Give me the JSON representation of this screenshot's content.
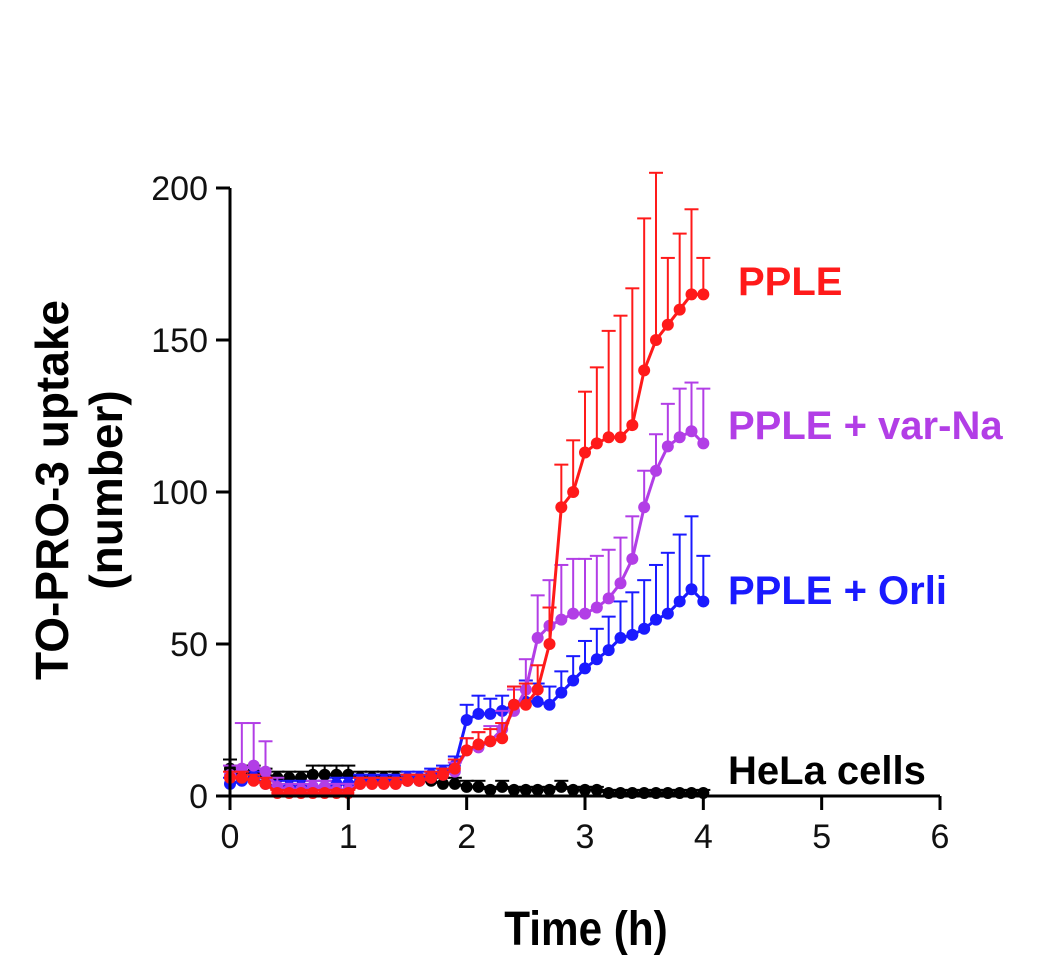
{
  "chart_data": {
    "type": "line",
    "title": "",
    "xlabel": "Time (h)",
    "ylabel_line1": "TO-PRO-3 uptake",
    "ylabel_line2": "(number)",
    "xlim": [
      0,
      6
    ],
    "ylim": [
      0,
      200
    ],
    "xticks": [
      0,
      1,
      2,
      3,
      4,
      5,
      6
    ],
    "yticks": [
      0,
      50,
      100,
      150,
      200
    ],
    "grid": false,
    "series": [
      {
        "name": "HeLa cells",
        "color": "#000000",
        "x": [
          0,
          0.1,
          0.2,
          0.3,
          0.4,
          0.5,
          0.6,
          0.7,
          0.8,
          0.9,
          1.0,
          1.1,
          1.2,
          1.3,
          1.4,
          1.5,
          1.6,
          1.7,
          1.8,
          1.9,
          2.0,
          2.1,
          2.2,
          2.3,
          2.4,
          2.5,
          2.6,
          2.7,
          2.8,
          2.9,
          3.0,
          3.1,
          3.2,
          3.3,
          3.4,
          3.5,
          3.6,
          3.7,
          3.8,
          3.9,
          4.0
        ],
        "y": [
          9,
          8,
          8,
          7,
          6,
          6,
          6,
          7,
          7,
          7,
          7,
          6,
          6,
          6,
          6,
          5,
          5,
          5,
          4,
          4,
          3,
          3,
          2,
          3,
          2,
          2,
          2,
          2,
          3,
          2,
          2,
          2,
          1,
          1,
          1,
          1,
          1,
          1,
          1,
          1,
          1
        ],
        "err": [
          3,
          2,
          2,
          2,
          2,
          2,
          2,
          3,
          3,
          3,
          3,
          2,
          2,
          2,
          2,
          2,
          2,
          2,
          2,
          2,
          2,
          2,
          1,
          2,
          1,
          1,
          1,
          1,
          2,
          1,
          1,
          1,
          1,
          1,
          1,
          1,
          1,
          1,
          1,
          1,
          1
        ]
      },
      {
        "name": "PPLE + Orli",
        "color": "#1a1aff",
        "x": [
          0,
          0.1,
          0.2,
          0.3,
          0.4,
          0.5,
          0.6,
          0.7,
          0.8,
          0.9,
          1.0,
          1.1,
          1.2,
          1.3,
          1.4,
          1.5,
          1.6,
          1.7,
          1.8,
          1.9,
          2.0,
          2.1,
          2.2,
          2.3,
          2.4,
          2.5,
          2.6,
          2.7,
          2.8,
          2.9,
          3.0,
          3.1,
          3.2,
          3.3,
          3.4,
          3.5,
          3.6,
          3.7,
          3.8,
          3.9,
          4.0
        ],
        "y": [
          4,
          5,
          6,
          4,
          3,
          3,
          3,
          3,
          3,
          4,
          4,
          5,
          5,
          5,
          5,
          6,
          6,
          7,
          8,
          10,
          25,
          27,
          27,
          28,
          30,
          31,
          31,
          30,
          34,
          38,
          42,
          45,
          48,
          52,
          53,
          55,
          58,
          60,
          64,
          68,
          64
        ],
        "err": [
          2,
          2,
          2,
          2,
          2,
          2,
          2,
          2,
          2,
          2,
          2,
          2,
          2,
          2,
          2,
          2,
          2,
          2,
          2,
          3,
          5,
          6,
          5,
          5,
          6,
          7,
          6,
          6,
          7,
          8,
          9,
          10,
          11,
          12,
          14,
          16,
          18,
          20,
          22,
          24,
          15
        ]
      },
      {
        "name": "PPLE + var-Na",
        "color": "#b23ee6",
        "x": [
          0,
          0.1,
          0.2,
          0.3,
          0.4,
          0.5,
          0.6,
          0.7,
          0.8,
          0.9,
          1.0,
          1.1,
          1.2,
          1.3,
          1.4,
          1.5,
          1.6,
          1.7,
          1.8,
          1.9,
          2.0,
          2.1,
          2.2,
          2.3,
          2.4,
          2.5,
          2.6,
          2.7,
          2.8,
          2.9,
          3.0,
          3.1,
          3.2,
          3.3,
          3.4,
          3.5,
          3.6,
          3.7,
          3.8,
          3.9,
          4.0
        ],
        "y": [
          7,
          9,
          10,
          8,
          3,
          2,
          2,
          3,
          3,
          2,
          2,
          4,
          4,
          4,
          4,
          5,
          5,
          6,
          7,
          8,
          15,
          16,
          18,
          22,
          28,
          35,
          52,
          56,
          58,
          60,
          60,
          62,
          65,
          70,
          78,
          95,
          107,
          115,
          118,
          120,
          116
        ],
        "err": [
          3,
          15,
          14,
          10,
          3,
          2,
          2,
          2,
          2,
          2,
          2,
          2,
          2,
          2,
          2,
          2,
          2,
          2,
          2,
          3,
          4,
          5,
          5,
          6,
          7,
          10,
          14,
          15,
          18,
          18,
          18,
          17,
          16,
          15,
          14,
          12,
          12,
          14,
          16,
          16,
          18
        ]
      },
      {
        "name": "PPLE",
        "color": "#ff1a1a",
        "x": [
          0,
          0.1,
          0.2,
          0.3,
          0.4,
          0.5,
          0.6,
          0.7,
          0.8,
          0.9,
          1.0,
          1.1,
          1.2,
          1.3,
          1.4,
          1.5,
          1.6,
          1.7,
          1.8,
          1.9,
          2.0,
          2.1,
          2.2,
          2.3,
          2.4,
          2.5,
          2.6,
          2.7,
          2.8,
          2.9,
          3.0,
          3.1,
          3.2,
          3.3,
          3.4,
          3.5,
          3.6,
          3.7,
          3.8,
          3.9,
          4.0
        ],
        "y": [
          6,
          6,
          5,
          4,
          1,
          1,
          1,
          1,
          1,
          1,
          1,
          4,
          4,
          4,
          4,
          5,
          5,
          6,
          7,
          9,
          15,
          17,
          18,
          19,
          30,
          30,
          35,
          50,
          95,
          100,
          113,
          116,
          118,
          118,
          122,
          140,
          150,
          155,
          160,
          165,
          165
        ],
        "err": [
          2,
          2,
          2,
          2,
          1,
          1,
          1,
          1,
          1,
          1,
          1,
          2,
          2,
          2,
          2,
          2,
          2,
          2,
          2,
          3,
          4,
          4,
          4,
          5,
          6,
          7,
          8,
          12,
          14,
          17,
          20,
          25,
          35,
          40,
          45,
          50,
          55,
          22,
          25,
          28,
          12
        ]
      }
    ],
    "labels": [
      {
        "text": "PPLE",
        "color": "#ff1a1a"
      },
      {
        "text": "PPLE + var-Na",
        "color": "#b23ee6"
      },
      {
        "text": "PPLE + Orli",
        "color": "#1a1aff"
      },
      {
        "text": "HeLa cells",
        "color": "#000000"
      }
    ]
  }
}
